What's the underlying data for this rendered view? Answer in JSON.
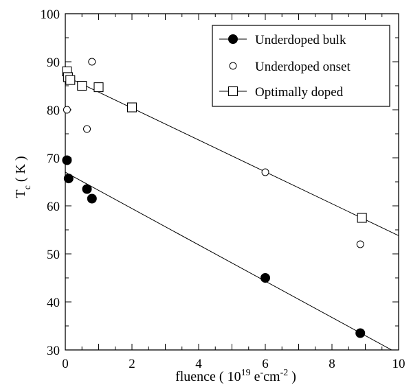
{
  "chart_data": {
    "type": "scatter",
    "xlabel": {
      "prefix": "fluence ( 10",
      "exp1": "19",
      "mid": " e",
      "exp2": "-",
      "mid2": "cm",
      "exp3": "-2",
      "suffix": " )"
    },
    "ylabel": {
      "main": "T",
      "sub": "c",
      "suffix": " ( K )"
    },
    "xlim": [
      0,
      10
    ],
    "ylim": [
      30,
      100
    ],
    "xticks": [
      0,
      2,
      4,
      6,
      8,
      10
    ],
    "yticks": [
      30,
      40,
      50,
      60,
      70,
      80,
      90,
      100
    ],
    "grid": false,
    "legend_position": "top-right",
    "series": [
      {
        "name": "Underdoped bulk",
        "marker": "filled-circle",
        "color": "#000000",
        "points": [
          [
            0.05,
            69.5
          ],
          [
            0.1,
            65.7
          ],
          [
            0.65,
            63.5
          ],
          [
            0.8,
            61.5
          ],
          [
            6.0,
            45.0
          ],
          [
            8.85,
            33.5
          ]
        ],
        "fit": [
          [
            0,
            67.0
          ],
          [
            10,
            29.2
          ]
        ]
      },
      {
        "name": "Underdoped onset",
        "marker": "open-circle",
        "color": "#000000",
        "points": [
          [
            0.05,
            80.0
          ],
          [
            0.8,
            90.0
          ],
          [
            0.65,
            76.0
          ],
          [
            6.0,
            67.0
          ],
          [
            8.85,
            52.0
          ]
        ]
      },
      {
        "name": "Optimally doped",
        "marker": "open-square",
        "color": "#000000",
        "points": [
          [
            0.05,
            88.0
          ],
          [
            0.08,
            86.8
          ],
          [
            0.15,
            86.2
          ],
          [
            0.5,
            85.0
          ],
          [
            1.0,
            84.7
          ],
          [
            2.0,
            80.5
          ],
          [
            8.9,
            57.5
          ]
        ],
        "fit": [
          [
            0,
            87.0
          ],
          [
            10,
            53.8
          ]
        ]
      }
    ]
  }
}
